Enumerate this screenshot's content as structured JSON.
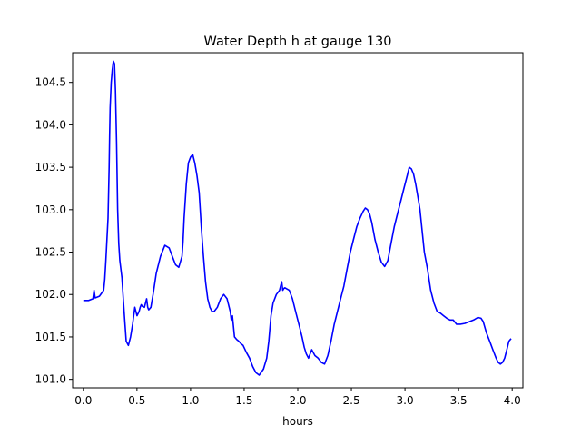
{
  "chart_data": {
    "type": "line",
    "title": "Water Depth h at gauge 130",
    "xlabel": "hours",
    "ylabel": "",
    "xlim": [
      -0.1,
      4.1
    ],
    "ylim": [
      100.9,
      104.85
    ],
    "xticks": [
      0.0,
      0.5,
      1.0,
      1.5,
      2.0,
      2.5,
      3.0,
      3.5,
      4.0
    ],
    "xtick_labels": [
      "0.0",
      "0.5",
      "1.0",
      "1.5",
      "2.0",
      "2.5",
      "3.0",
      "3.5",
      "4.0"
    ],
    "yticks": [
      101.0,
      101.5,
      102.0,
      102.5,
      103.0,
      103.5,
      104.0,
      104.5
    ],
    "ytick_labels": [
      "101.0",
      "101.5",
      "102.0",
      "102.5",
      "103.0",
      "103.5",
      "104.0",
      "104.5"
    ],
    "grid": false,
    "series": [
      {
        "name": "",
        "color": "#0000ff",
        "x": [
          0.0,
          0.05,
          0.09,
          0.1,
          0.11,
          0.15,
          0.19,
          0.2,
          0.21,
          0.23,
          0.24,
          0.245,
          0.25,
          0.26,
          0.27,
          0.28,
          0.29,
          0.3,
          0.31,
          0.32,
          0.33,
          0.34,
          0.36,
          0.38,
          0.4,
          0.42,
          0.44,
          0.46,
          0.48,
          0.5,
          0.52,
          0.53,
          0.54,
          0.55,
          0.57,
          0.59,
          0.6,
          0.61,
          0.63,
          0.65,
          0.68,
          0.72,
          0.76,
          0.8,
          0.83,
          0.86,
          0.89,
          0.92,
          0.93,
          0.94,
          0.96,
          0.98,
          1.0,
          1.02,
          1.04,
          1.06,
          1.08,
          1.1,
          1.12,
          1.14,
          1.16,
          1.18,
          1.2,
          1.22,
          1.25,
          1.28,
          1.31,
          1.34,
          1.37,
          1.38,
          1.39,
          1.41,
          1.43,
          1.45,
          1.47,
          1.49,
          1.52,
          1.55,
          1.58,
          1.61,
          1.64,
          1.68,
          1.71,
          1.73,
          1.74,
          1.75,
          1.77,
          1.8,
          1.83,
          1.85,
          1.86,
          1.87,
          1.88,
          1.92,
          1.95,
          1.98,
          2.01,
          2.04,
          2.06,
          2.08,
          2.1,
          2.13,
          2.16,
          2.19,
          2.22,
          2.25,
          2.28,
          2.31,
          2.34,
          2.37,
          2.4,
          2.43,
          2.46,
          2.49,
          2.52,
          2.55,
          2.58,
          2.61,
          2.63,
          2.65,
          2.67,
          2.69,
          2.72,
          2.75,
          2.78,
          2.81,
          2.84,
          2.87,
          2.9,
          2.93,
          2.96,
          2.99,
          3.02,
          3.04,
          3.06,
          3.08,
          3.1,
          3.12,
          3.14,
          3.16,
          3.18,
          3.21,
          3.24,
          3.27,
          3.3,
          3.33,
          3.36,
          3.39,
          3.42,
          3.45,
          3.48,
          3.52,
          3.56,
          3.6,
          3.64,
          3.68,
          3.71,
          3.73,
          3.76,
          3.79,
          3.82,
          3.85,
          3.87,
          3.89,
          3.91,
          3.93,
          3.95,
          3.97,
          3.99
        ],
        "y": [
          101.93,
          101.93,
          101.95,
          102.05,
          101.96,
          101.98,
          102.05,
          102.18,
          102.4,
          102.9,
          103.5,
          103.85,
          104.2,
          104.5,
          104.65,
          104.75,
          104.72,
          104.4,
          103.8,
          103.0,
          102.6,
          102.4,
          102.2,
          101.8,
          101.45,
          101.4,
          101.5,
          101.65,
          101.85,
          101.75,
          101.8,
          101.85,
          101.88,
          101.86,
          101.85,
          101.95,
          101.85,
          101.82,
          101.85,
          102.0,
          102.25,
          102.45,
          102.58,
          102.55,
          102.45,
          102.35,
          102.32,
          102.45,
          102.62,
          102.9,
          103.3,
          103.55,
          103.62,
          103.65,
          103.55,
          103.4,
          103.2,
          102.8,
          102.45,
          102.15,
          101.95,
          101.85,
          101.8,
          101.8,
          101.85,
          101.95,
          102.0,
          101.95,
          101.8,
          101.7,
          101.75,
          101.5,
          101.47,
          101.45,
          101.42,
          101.4,
          101.32,
          101.25,
          101.15,
          101.08,
          101.05,
          101.12,
          101.25,
          101.45,
          101.6,
          101.75,
          101.9,
          102.0,
          102.05,
          102.15,
          102.05,
          102.07,
          102.08,
          102.05,
          101.95,
          101.8,
          101.65,
          101.5,
          101.38,
          101.3,
          101.25,
          101.35,
          101.28,
          101.25,
          101.2,
          101.18,
          101.28,
          101.45,
          101.65,
          101.8,
          101.95,
          102.1,
          102.3,
          102.5,
          102.65,
          102.8,
          102.9,
          102.98,
          103.02,
          103.0,
          102.95,
          102.85,
          102.65,
          102.5,
          102.38,
          102.33,
          102.4,
          102.6,
          102.8,
          102.95,
          103.1,
          103.25,
          103.4,
          103.5,
          103.48,
          103.42,
          103.3,
          103.15,
          103.0,
          102.75,
          102.5,
          102.3,
          102.05,
          101.9,
          101.8,
          101.78,
          101.75,
          101.72,
          101.7,
          101.7,
          101.65,
          101.65,
          101.66,
          101.68,
          101.7,
          101.73,
          101.72,
          101.68,
          101.55,
          101.45,
          101.35,
          101.25,
          101.2,
          101.18,
          101.2,
          101.25,
          101.35,
          101.45,
          101.48
        ]
      }
    ]
  }
}
